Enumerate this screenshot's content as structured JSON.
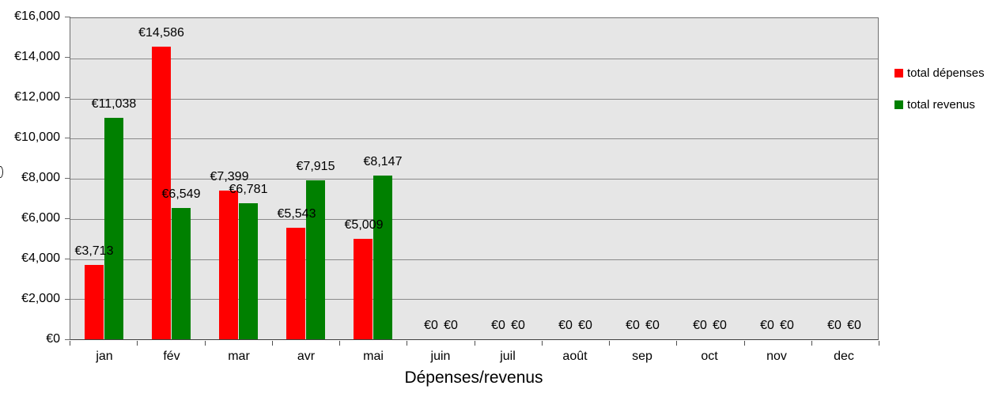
{
  "colors": {
    "expenses": "#ff0000",
    "revenues": "#008000",
    "plot_background": "#e6e6e6",
    "gridline": "#8a8a8a",
    "axis": "#3f3f3f",
    "text": "#000000",
    "page_background": "#ffffff"
  },
  "x_axis_title": "Dépenses/revenus",
  "y_axis": {
    "title_fragment": ")"
  },
  "legend": {
    "items": [
      {
        "label": "total dépenses",
        "color": "#ff0000"
      },
      {
        "label": "total revenus",
        "color": "#008000"
      }
    ]
  },
  "chart_data": {
    "type": "bar",
    "title": "",
    "xlabel": "Dépenses/revenus",
    "ylabel": "",
    "categories": [
      "jan",
      "fév",
      "mar",
      "avr",
      "mai",
      "juin",
      "juil",
      "août",
      "sep",
      "oct",
      "nov",
      "dec"
    ],
    "series": [
      {
        "name": "total dépenses",
        "color": "#ff0000",
        "values": [
          3713,
          14586,
          7399,
          5543,
          5009,
          0,
          0,
          0,
          0,
          0,
          0,
          0
        ],
        "labels": [
          "€3,713",
          "€14,586",
          "€7,399",
          "€5,543",
          "€5,009",
          "€0",
          "€0",
          "€0",
          "€0",
          "€0",
          "€0",
          "€0"
        ]
      },
      {
        "name": "total revenus",
        "color": "#008000",
        "values": [
          11038,
          6549,
          6781,
          7915,
          8147,
          0,
          0,
          0,
          0,
          0,
          0,
          0
        ],
        "labels": [
          "€11,038",
          "€6,549",
          "€6,781",
          "€7,915",
          "€8,147",
          "€0",
          "€0",
          "€0",
          "€0",
          "€0",
          "€0",
          "€0"
        ]
      }
    ],
    "ylim": [
      0,
      16000
    ],
    "y_tick_step": 2000,
    "y_tick_labels": [
      "€0",
      "€2,000",
      "€4,000",
      "€6,000",
      "€8,000",
      "€10,000",
      "€12,000",
      "€14,000",
      "€16,000"
    ],
    "grid": true,
    "legend_position": "right"
  }
}
